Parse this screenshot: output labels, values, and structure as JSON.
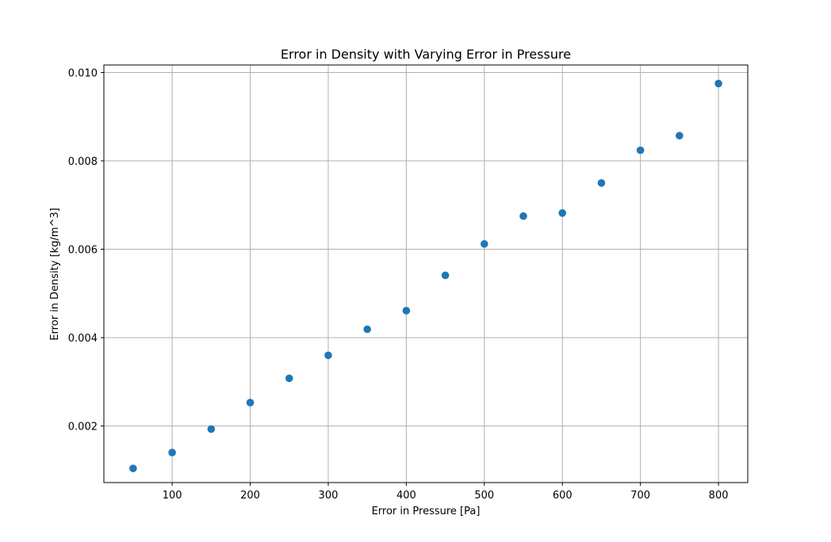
{
  "chart_data": {
    "type": "scatter",
    "title": "Error in Density with Varying Error in Pressure",
    "xlabel": "Error in Pressure [Pa]",
    "ylabel": "Error in Density [kg/m^3]",
    "xlim": [
      12.5,
      837.5
    ],
    "ylim": [
      0.00072,
      0.01017
    ],
    "xticks": [
      100,
      200,
      300,
      400,
      500,
      600,
      700,
      800
    ],
    "xtick_labels": [
      "100",
      "200",
      "300",
      "400",
      "500",
      "600",
      "700",
      "800"
    ],
    "yticks": [
      0.002,
      0.004,
      0.006,
      0.008,
      0.01
    ],
    "ytick_labels": [
      "0.002",
      "0.004",
      "0.006",
      "0.008",
      "0.010"
    ],
    "grid": true,
    "marker_color": "#1f77b4",
    "series": [
      {
        "x": [
          50,
          100,
          150,
          200,
          250,
          300,
          350,
          400,
          450,
          500,
          550,
          600,
          650,
          700,
          750,
          800
        ],
        "y": [
          0.00104,
          0.0014,
          0.00193,
          0.00253,
          0.00308,
          0.0036,
          0.00419,
          0.00461,
          0.00541,
          0.00612,
          0.00675,
          0.00682,
          0.0075,
          0.00824,
          0.00857,
          0.00975
        ]
      }
    ]
  }
}
